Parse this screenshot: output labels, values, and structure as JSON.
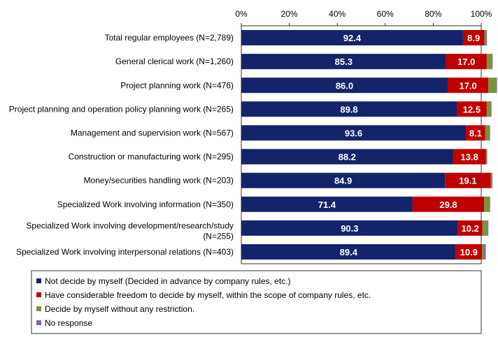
{
  "chart_data": {
    "type": "stacked_barh",
    "categories": [
      "Total regular employees (N=2,789)",
      "General clerical work (N=1,260)",
      "Project planning work (N=476)",
      "Project planning and operation policy planning work (N=265)",
      "Management and supervision work (N=567)",
      "Construction or manufacturing work (N=295)",
      "Money/securities handling work (N=203)",
      "Specialized Work involving information (N=350)",
      "Specialized Work involving development/research/study (N=255)",
      "Specialized Work involving interpersonal relations (N=403)"
    ],
    "series": [
      {
        "name": "Not decide by myself  (Decided in advance by company rules, etc.)",
        "color": "#15236b",
        "values": [
          92.4,
          85.3,
          86.0,
          89.8,
          93.6,
          88.2,
          84.9,
          71.4,
          90.3,
          89.4
        ],
        "value_labels": [
          "92.4",
          "85.3",
          "86.0",
          "89.8",
          "93.6",
          "88.2",
          "84.9",
          "71.4",
          "90.3",
          "89.4"
        ]
      },
      {
        "name": "Have considerable freedom to decide by myself, within the scope of company rules, etc.",
        "color": "#c00000",
        "values": [
          8.9,
          17.0,
          17.0,
          12.5,
          8.1,
          13.8,
          19.1,
          29.8,
          10.2,
          10.9
        ],
        "value_labels": [
          "8.9",
          "17.0",
          "17.0",
          "12.5",
          "8.1",
          "13.8",
          "19.1",
          "29.8",
          "10.2",
          "10.9"
        ]
      },
      {
        "name": "Decide by myself without any restriction.",
        "color": "#77933c",
        "values": [
          0.9,
          2.3,
          3.3,
          1.8,
          1.8,
          0.3,
          0.5,
          2.3,
          2.2,
          0.6
        ]
      },
      {
        "name": "No response",
        "color": "#8064a2",
        "values": [
          0.2,
          0.2,
          0.3,
          0.2,
          0.2,
          0.2,
          0.2,
          0.2,
          0.3,
          1.0
        ]
      }
    ],
    "xlim": [
      0,
      100
    ],
    "xticks": [
      {
        "value": 0,
        "label": "0%"
      },
      {
        "value": 20,
        "label": "20%"
      },
      {
        "value": 40,
        "label": "40%"
      },
      {
        "value": 60,
        "label": "60%"
      },
      {
        "value": 80,
        "label": "80%"
      },
      {
        "value": 100,
        "label": "100%"
      }
    ]
  }
}
